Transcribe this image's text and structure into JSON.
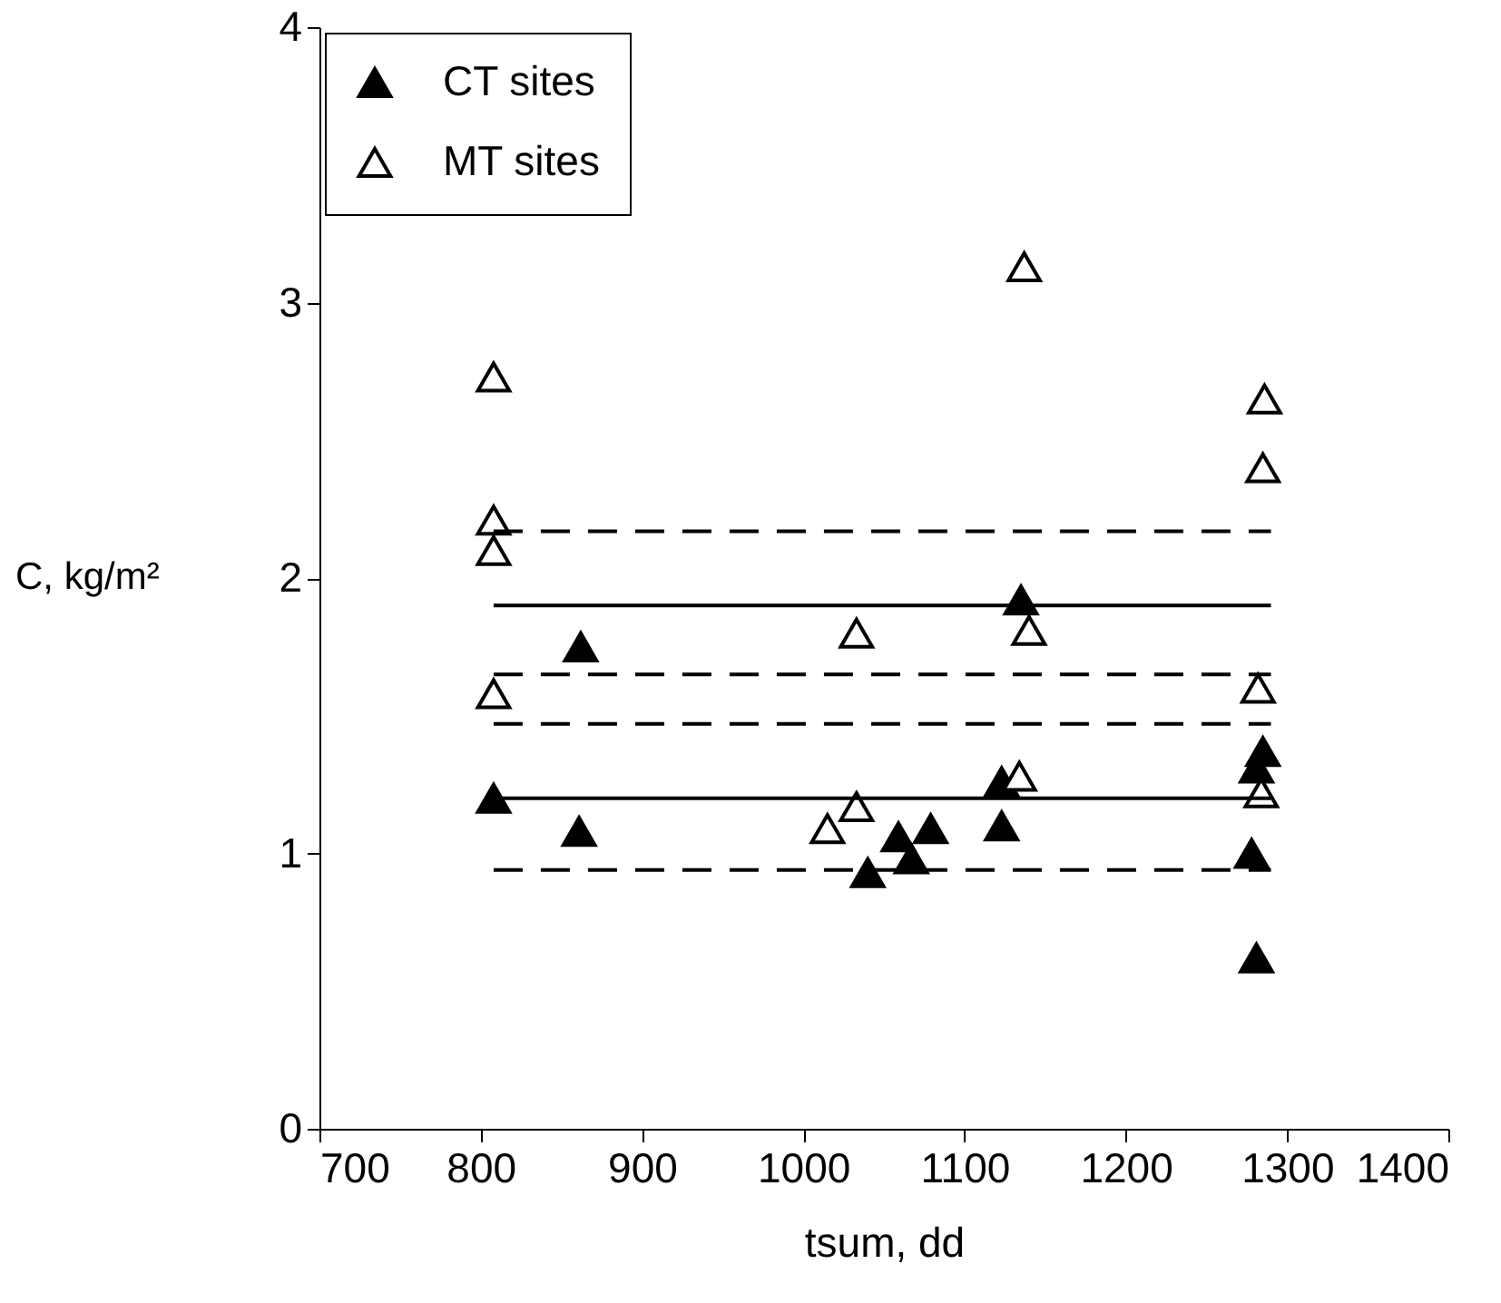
{
  "chart_data": {
    "type": "scatter",
    "xlabel": "tsum, dd",
    "ylabel": "C, kg/m²",
    "xlim": [
      700,
      1400
    ],
    "xticks": [
      700,
      800,
      900,
      1000,
      1100,
      1200,
      1300,
      1400
    ],
    "ylim": [
      0,
      4
    ],
    "yticks": [
      0,
      1,
      2,
      3,
      4
    ],
    "grid": false,
    "legend": "top left",
    "marker": "triangle",
    "series": [
      {
        "name": "CT sites",
        "color": "#000000",
        "x": [
          808,
          861,
          862,
          1040,
          1059,
          1067,
          1079,
          1123,
          1123,
          1135,
          1278,
          1281,
          1285,
          1281
        ],
        "values": [
          1.2,
          1.08,
          1.75,
          0.93,
          1.06,
          0.98,
          1.09,
          1.1,
          1.26,
          1.92,
          1.0,
          1.31,
          1.37,
          0.62
        ]
      },
      {
        "name": "MT sites",
        "color": "#ffffff",
        "x": [
          808,
          808,
          808,
          808,
          1015,
          1033,
          1033,
          1134,
          1137,
          1140,
          1282,
          1284,
          1285,
          1286
        ],
        "values": [
          2.73,
          2.21,
          2.1,
          1.58,
          1.09,
          1.17,
          1.8,
          1.28,
          3.13,
          1.81,
          1.6,
          1.22,
          2.4,
          2.65
        ]
      },
      {
        "type": "line",
        "color": "#000000",
        "line_style": "dashed",
        "marker": "none",
        "x": [
          808,
          1290
        ],
        "values": [
          2.17,
          2.17
        ]
      },
      {
        "type": "line",
        "color": "#000000",
        "line_style": "solid",
        "marker": "none",
        "x": [
          808,
          1290
        ],
        "values": [
          1.9,
          1.9
        ]
      },
      {
        "type": "line",
        "color": "#000000",
        "line_style": "dashed",
        "marker": "none",
        "x": [
          808,
          1290
        ],
        "values": [
          1.65,
          1.65
        ]
      },
      {
        "type": "line",
        "color": "#000000",
        "line_style": "dashed",
        "marker": "none",
        "x": [
          808,
          1290
        ],
        "values": [
          1.47,
          1.47
        ]
      },
      {
        "type": "line",
        "color": "#000000",
        "line_style": "solid",
        "marker": "none",
        "x": [
          808,
          1290
        ],
        "values": [
          1.2,
          1.2
        ]
      },
      {
        "type": "line",
        "color": "#000000",
        "line_style": "dashed",
        "marker": "none",
        "x": [
          808,
          1290
        ],
        "values": [
          0.94,
          0.94
        ]
      }
    ]
  }
}
